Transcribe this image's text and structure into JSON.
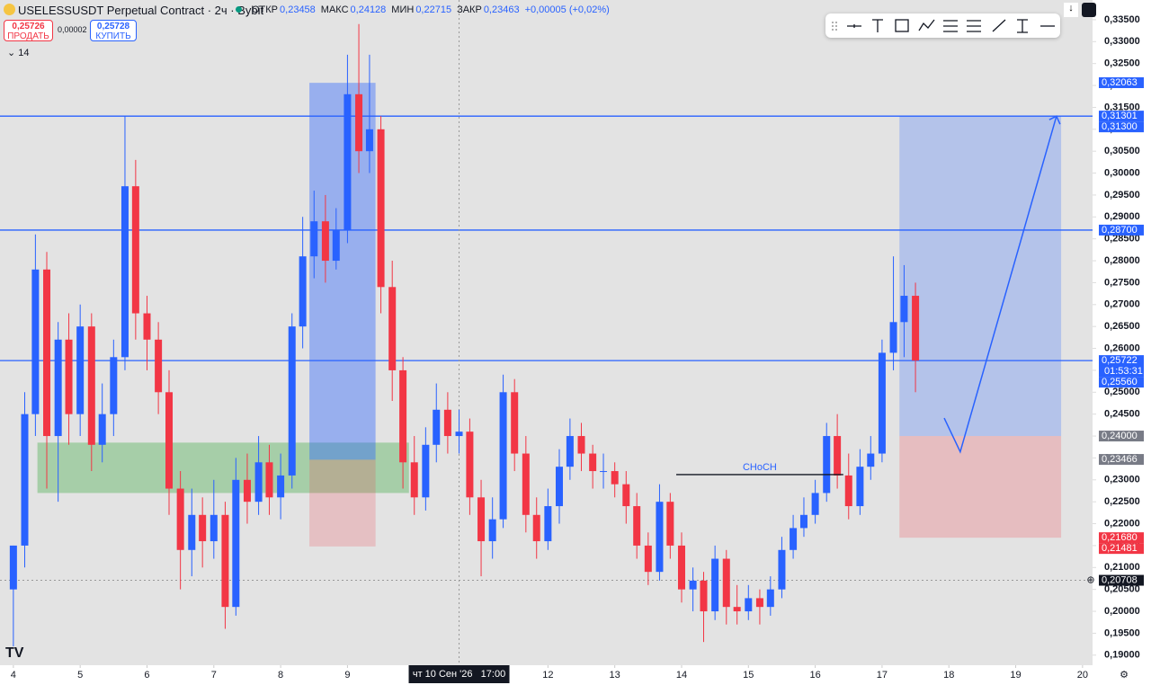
{
  "header": {
    "symbol": "USELESSUSDT Perpetual Contract · 2ч · Bybit",
    "ohlc": [
      {
        "label": "ОТКР",
        "value": "0,23458"
      },
      {
        "label": "МАКС",
        "value": "0,24128"
      },
      {
        "label": "МИН",
        "value": "0,22715"
      },
      {
        "label": "ЗАКР",
        "value": "0,23463"
      }
    ],
    "change": "+0,00005 (+0,02%)",
    "sell_price": "0,25726",
    "sell_label": "ПРОДАТЬ",
    "spread": "0,00002",
    "buy_price": "0,25728",
    "buy_label": "КУПИТЬ",
    "indicator": "14"
  },
  "chart_data": {
    "type": "candlestick",
    "up_color": "#2962ff",
    "down_color": "#f23645",
    "xlim": [
      3.8,
      20.15
    ],
    "ylim": [
      0.1877,
      0.3395
    ],
    "xticks": [
      4,
      5,
      6,
      7,
      8,
      9,
      10,
      11,
      12,
      13,
      14,
      15,
      16,
      17,
      18,
      19,
      20
    ],
    "yticks": [
      {
        "value": 0.19,
        "label": "0,19000"
      },
      {
        "value": 0.195,
        "label": "0,19500"
      },
      {
        "value": 0.2,
        "label": "0,20000"
      },
      {
        "value": 0.205,
        "label": "0,20500"
      },
      {
        "value": 0.21,
        "label": "0,21000"
      },
      {
        "value": 0.215,
        "label": "0,21500"
      },
      {
        "value": 0.22,
        "label": "0,22000"
      },
      {
        "value": 0.225,
        "label": "0,22500"
      },
      {
        "value": 0.23,
        "label": "0,23000"
      },
      {
        "value": 0.235,
        "label": "0,23500"
      },
      {
        "value": 0.24,
        "label": "0,24000"
      },
      {
        "value": 0.245,
        "label": "0,24500"
      },
      {
        "value": 0.25,
        "label": "0,25000"
      },
      {
        "value": 0.255,
        "label": "0,25500"
      },
      {
        "value": 0.26,
        "label": "0,26000"
      },
      {
        "value": 0.265,
        "label": "0,26500"
      },
      {
        "value": 0.27,
        "label": "0,27000"
      },
      {
        "value": 0.275,
        "label": "0,27500"
      },
      {
        "value": 0.28,
        "label": "0,28000"
      },
      {
        "value": 0.285,
        "label": "0,28500"
      },
      {
        "value": 0.29,
        "label": "0,29000"
      },
      {
        "value": 0.295,
        "label": "0,29500"
      },
      {
        "value": 0.3,
        "label": "0,30000"
      },
      {
        "value": 0.305,
        "label": "0,30500"
      },
      {
        "value": 0.31,
        "label": "0,31000"
      },
      {
        "value": 0.315,
        "label": "0,31500"
      },
      {
        "value": 0.32,
        "label": "0,32000"
      },
      {
        "value": 0.325,
        "label": "0,32500"
      },
      {
        "value": 0.33,
        "label": "0,33000"
      },
      {
        "value": 0.335,
        "label": "0,33500"
      }
    ],
    "x": [
      4,
      4.17,
      4.33,
      4.5,
      4.67,
      4.83,
      5,
      5.17,
      5.33,
      5.5,
      5.67,
      5.83,
      6,
      6.17,
      6.33,
      6.5,
      6.67,
      6.83,
      7,
      7.17,
      7.33,
      7.5,
      7.67,
      7.83,
      8,
      8.17,
      8.33,
      8.5,
      8.67,
      8.83,
      9,
      9.17,
      9.33,
      9.5,
      9.67,
      9.83,
      10,
      10.17,
      10.33,
      10.5,
      10.67,
      10.83,
      11,
      11.17,
      11.33,
      11.5,
      11.67,
      11.83,
      12,
      12.17,
      12.33,
      12.5,
      12.67,
      12.83,
      13,
      13.17,
      13.33,
      13.5,
      13.67,
      13.83,
      14,
      14.17,
      14.33,
      14.5,
      14.67,
      14.83,
      15,
      15.17,
      15.33,
      15.5,
      15.67,
      15.83,
      16,
      16.17,
      16.33,
      16.5,
      16.67,
      16.83,
      17,
      17.17,
      17.33,
      17.5
    ],
    "candles": [
      [
        0.205,
        0.215,
        0.192,
        0.215
      ],
      [
        0.215,
        0.25,
        0.21,
        0.245
      ],
      [
        0.245,
        0.286,
        0.24,
        0.278
      ],
      [
        0.278,
        0.282,
        0.228,
        0.24
      ],
      [
        0.24,
        0.266,
        0.225,
        0.262
      ],
      [
        0.262,
        0.268,
        0.238,
        0.245
      ],
      [
        0.245,
        0.27,
        0.24,
        0.265
      ],
      [
        0.265,
        0.268,
        0.232,
        0.238
      ],
      [
        0.238,
        0.252,
        0.234,
        0.245
      ],
      [
        0.245,
        0.262,
        0.24,
        0.258
      ],
      [
        0.258,
        0.313,
        0.255,
        0.297
      ],
      [
        0.297,
        0.303,
        0.262,
        0.268
      ],
      [
        0.268,
        0.272,
        0.255,
        0.262
      ],
      [
        0.262,
        0.266,
        0.245,
        0.25
      ],
      [
        0.25,
        0.255,
        0.222,
        0.228
      ],
      [
        0.228,
        0.232,
        0.205,
        0.214
      ],
      [
        0.214,
        0.228,
        0.208,
        0.222
      ],
      [
        0.222,
        0.226,
        0.21,
        0.216
      ],
      [
        0.216,
        0.23,
        0.212,
        0.222
      ],
      [
        0.222,
        0.225,
        0.196,
        0.201
      ],
      [
        0.201,
        0.235,
        0.199,
        0.23
      ],
      [
        0.23,
        0.236,
        0.22,
        0.225
      ],
      [
        0.225,
        0.24,
        0.222,
        0.234
      ],
      [
        0.234,
        0.238,
        0.222,
        0.226
      ],
      [
        0.226,
        0.236,
        0.221,
        0.231
      ],
      [
        0.231,
        0.268,
        0.228,
        0.265
      ],
      [
        0.265,
        0.29,
        0.26,
        0.281
      ],
      [
        0.281,
        0.296,
        0.276,
        0.289
      ],
      [
        0.289,
        0.295,
        0.275,
        0.28
      ],
      [
        0.28,
        0.292,
        0.278,
        0.287
      ],
      [
        0.287,
        0.327,
        0.284,
        0.318
      ],
      [
        0.318,
        0.334,
        0.3,
        0.305
      ],
      [
        0.305,
        0.327,
        0.3,
        0.31
      ],
      [
        0.31,
        0.313,
        0.268,
        0.274
      ],
      [
        0.274,
        0.28,
        0.248,
        0.255
      ],
      [
        0.255,
        0.258,
        0.228,
        0.234
      ],
      [
        0.234,
        0.24,
        0.222,
        0.226
      ],
      [
        0.226,
        0.242,
        0.223,
        0.238
      ],
      [
        0.238,
        0.252,
        0.234,
        0.246
      ],
      [
        0.246,
        0.25,
        0.236,
        0.24
      ],
      [
        0.24,
        0.246,
        0.236,
        0.241
      ],
      [
        0.241,
        0.244,
        0.222,
        0.226
      ],
      [
        0.226,
        0.23,
        0.208,
        0.216
      ],
      [
        0.216,
        0.226,
        0.212,
        0.221
      ],
      [
        0.221,
        0.254,
        0.219,
        0.25
      ],
      [
        0.25,
        0.253,
        0.232,
        0.236
      ],
      [
        0.236,
        0.24,
        0.218,
        0.222
      ],
      [
        0.222,
        0.226,
        0.212,
        0.216
      ],
      [
        0.216,
        0.228,
        0.214,
        0.224
      ],
      [
        0.224,
        0.237,
        0.22,
        0.233
      ],
      [
        0.233,
        0.244,
        0.23,
        0.24
      ],
      [
        0.24,
        0.243,
        0.232,
        0.236
      ],
      [
        0.236,
        0.238,
        0.228,
        0.232
      ],
      [
        0.232,
        0.236,
        0.228,
        0.232
      ],
      [
        0.232,
        0.234,
        0.226,
        0.229
      ],
      [
        0.229,
        0.232,
        0.22,
        0.224
      ],
      [
        0.224,
        0.227,
        0.212,
        0.215
      ],
      [
        0.215,
        0.218,
        0.206,
        0.209
      ],
      [
        0.209,
        0.229,
        0.207,
        0.225
      ],
      [
        0.225,
        0.227,
        0.212,
        0.215
      ],
      [
        0.215,
        0.218,
        0.202,
        0.205
      ],
      [
        0.205,
        0.21,
        0.2,
        0.207
      ],
      [
        0.207,
        0.209,
        0.193,
        0.2
      ],
      [
        0.2,
        0.215,
        0.198,
        0.212
      ],
      [
        0.212,
        0.214,
        0.197,
        0.201
      ],
      [
        0.201,
        0.206,
        0.197,
        0.2
      ],
      [
        0.2,
        0.206,
        0.198,
        0.203
      ],
      [
        0.203,
        0.205,
        0.197,
        0.201
      ],
      [
        0.201,
        0.208,
        0.199,
        0.205
      ],
      [
        0.205,
        0.217,
        0.203,
        0.214
      ],
      [
        0.214,
        0.222,
        0.212,
        0.219
      ],
      [
        0.219,
        0.226,
        0.217,
        0.222
      ],
      [
        0.222,
        0.23,
        0.22,
        0.227
      ],
      [
        0.227,
        0.243,
        0.225,
        0.24
      ],
      [
        0.24,
        0.245,
        0.228,
        0.231
      ],
      [
        0.231,
        0.236,
        0.221,
        0.224
      ],
      [
        0.224,
        0.237,
        0.222,
        0.233
      ],
      [
        0.233,
        0.24,
        0.23,
        0.236
      ],
      [
        0.236,
        0.262,
        0.234,
        0.259
      ],
      [
        0.259,
        0.281,
        0.255,
        0.266
      ],
      [
        0.266,
        0.279,
        0.258,
        0.272
      ],
      [
        0.272,
        0.275,
        0.25,
        0.25722
      ]
    ],
    "hlines": [
      0.313,
      0.287,
      0.25722
    ],
    "zones": [
      {
        "x": [
          4.36,
          9.92
        ],
        "y": [
          0.227,
          0.2385
        ],
        "color": "rgba(76,175,80,0.4)"
      },
      {
        "x": [
          8.43,
          9.42
        ],
        "y": [
          0.2346,
          0.3206
        ],
        "color": "rgba(41,98,255,0.4)"
      },
      {
        "x": [
          8.43,
          9.42
        ],
        "y": [
          0.2148,
          0.2346
        ],
        "color": "rgba(242,54,69,0.2)"
      },
      {
        "x": [
          17.26,
          19.68
        ],
        "y": [
          0.24,
          0.313
        ],
        "color": "rgba(41,98,255,0.25)"
      },
      {
        "x": [
          17.26,
          19.68
        ],
        "y": [
          0.2168,
          0.24
        ],
        "color": "rgba(242,54,69,0.22)"
      }
    ],
    "arrow": {
      "x": [
        17.93,
        18.17,
        19.61
      ],
      "y": [
        0.2441,
        0.2364,
        0.313
      ]
    },
    "choch": {
      "label": "CHoCH",
      "x": [
        13.92,
        16.42
      ],
      "y": 0.2312
    },
    "crosshair": {
      "x": 10.67,
      "y": 0.20708,
      "time_label": "чт 10 Сен '26   17:00"
    },
    "price_labels": [
      {
        "value": 0.32063,
        "label": "0,32063",
        "bg": "#2962ff"
      },
      {
        "value": 0.31301,
        "label": "0,31301",
        "bg": "#2962ff"
      },
      {
        "value": 0.313,
        "label": "0,31300",
        "bg": "#2962ff"
      },
      {
        "value": 0.287,
        "label": "0,28700",
        "bg": "#2962ff"
      },
      {
        "value": 0.25722,
        "label": "0,25722",
        "sub": "01:53:31",
        "bg": "#2962ff"
      },
      {
        "value": 0.2556,
        "label": "0,25560",
        "bg": "#2962ff"
      },
      {
        "value": 0.24,
        "label": "0,24000",
        "bg": "#787b86"
      },
      {
        "value": 0.23466,
        "label": "0,23466",
        "bg": "#787b86"
      },
      {
        "value": 0.2168,
        "label": "0,21680",
        "bg": "#f23645"
      },
      {
        "value": 0.21481,
        "label": "0,21481",
        "bg": "#f23645"
      },
      {
        "value": 0.20708,
        "label": "0,20708",
        "bg": "#131722"
      }
    ]
  }
}
